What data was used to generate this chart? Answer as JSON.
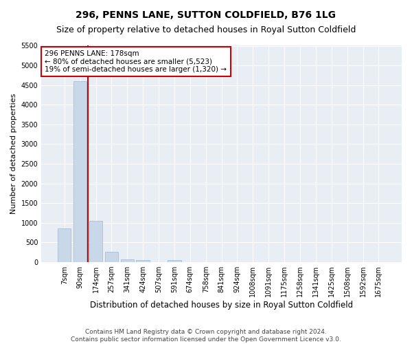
{
  "title": "296, PENNS LANE, SUTTON COLDFIELD, B76 1LG",
  "subtitle": "Size of property relative to detached houses in Royal Sutton Coldfield",
  "xlabel": "Distribution of detached houses by size in Royal Sutton Coldfield",
  "ylabel": "Number of detached properties",
  "categories": [
    "7sqm",
    "90sqm",
    "174sqm",
    "257sqm",
    "341sqm",
    "424sqm",
    "507sqm",
    "591sqm",
    "674sqm",
    "758sqm",
    "841sqm",
    "924sqm",
    "1008sqm",
    "1091sqm",
    "1175sqm",
    "1258sqm",
    "1341sqm",
    "1425sqm",
    "1508sqm",
    "1592sqm",
    "1675sqm"
  ],
  "values": [
    850,
    4600,
    1050,
    270,
    80,
    60,
    0,
    60,
    0,
    0,
    0,
    0,
    0,
    0,
    0,
    0,
    0,
    0,
    0,
    0,
    0
  ],
  "bar_color": "#c8d8e8",
  "bar_edge_color": "#a0b8d0",
  "vline_x": 1.5,
  "vline_color": "#cc0000",
  "annotation_text": "296 PENNS LANE: 178sqm\n← 80% of detached houses are smaller (5,523)\n19% of semi-detached houses are larger (1,320) →",
  "annotation_box_color": "#ffffff",
  "annotation_border_color": "#cc0000",
  "ylim": [
    0,
    5500
  ],
  "yticks": [
    0,
    500,
    1000,
    1500,
    2000,
    2500,
    3000,
    3500,
    4000,
    4500,
    5000,
    5500
  ],
  "background_color": "#e8eef4",
  "footer_text": "Contains HM Land Registry data © Crown copyright and database right 2024.\nContains public sector information licensed under the Open Government Licence v3.0.",
  "title_fontsize": 10,
  "subtitle_fontsize": 9,
  "xlabel_fontsize": 8.5,
  "ylabel_fontsize": 8,
  "tick_fontsize": 7,
  "footer_fontsize": 6.5,
  "annotation_fontsize": 7.5
}
